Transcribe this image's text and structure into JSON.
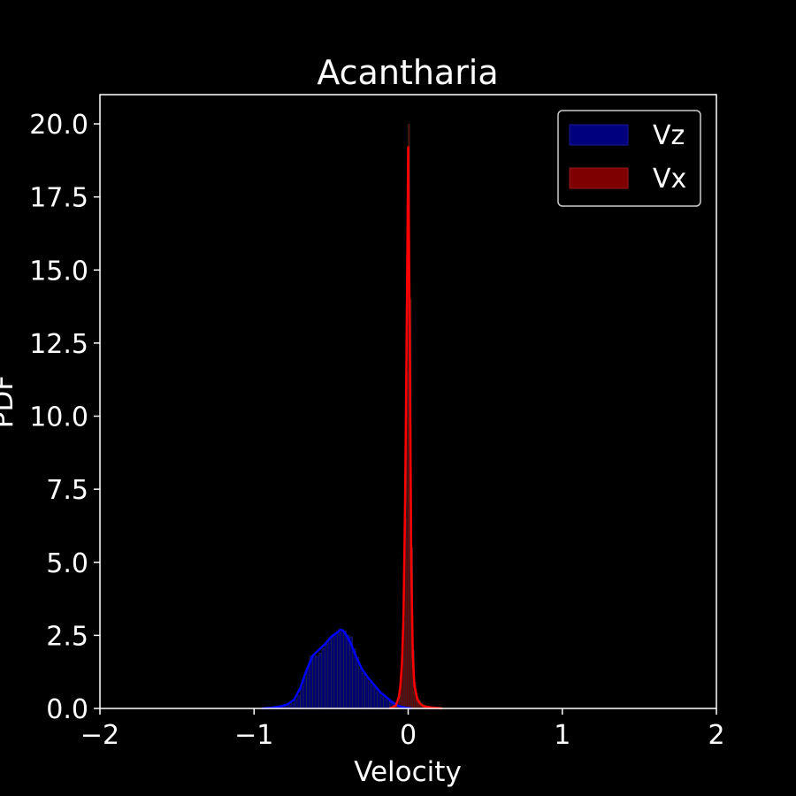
{
  "chart_data": {
    "type": "histogram",
    "title": "Acantharia",
    "xlabel": "Velocity",
    "ylabel": "PDF",
    "xlim": [
      -2,
      2
    ],
    "ylim": [
      0,
      21
    ],
    "x_ticks": [
      -2,
      -1,
      0,
      1,
      2
    ],
    "x_tick_labels": [
      "−2",
      "−1",
      "0",
      "1",
      "2"
    ],
    "y_ticks": [
      0,
      2.5,
      5,
      7.5,
      10,
      12.5,
      15,
      17.5,
      20
    ],
    "y_tick_labels": [
      "0.0",
      "2.5",
      "5.0",
      "7.5",
      "10.0",
      "12.5",
      "15.0",
      "17.5",
      "20.0"
    ],
    "grid": false,
    "legend_position": "top-right",
    "background": "#000000",
    "series": [
      {
        "name": "Vz",
        "bar_color": "#00007f",
        "line_color": "#0000ff",
        "bin_width": 0.02,
        "bins": [
          [
            -0.86,
            0.02
          ],
          [
            -0.84,
            0.04
          ],
          [
            -0.82,
            0.06
          ],
          [
            -0.8,
            0.08
          ],
          [
            -0.78,
            0.13
          ],
          [
            -0.76,
            0.18
          ],
          [
            -0.74,
            0.3
          ],
          [
            -0.72,
            0.45
          ],
          [
            -0.7,
            0.75
          ],
          [
            -0.68,
            1.05
          ],
          [
            -0.66,
            1.4
          ],
          [
            -0.64,
            1.8
          ],
          [
            -0.62,
            1.85
          ],
          [
            -0.6,
            1.8
          ],
          [
            -0.58,
            1.9
          ],
          [
            -0.56,
            2.05
          ],
          [
            -0.54,
            2.2
          ],
          [
            -0.52,
            2.35
          ],
          [
            -0.5,
            2.45
          ],
          [
            -0.48,
            2.55
          ],
          [
            -0.46,
            2.6
          ],
          [
            -0.44,
            2.7
          ],
          [
            -0.42,
            2.65
          ],
          [
            -0.4,
            2.5
          ],
          [
            -0.38,
            2.45
          ],
          [
            -0.36,
            2.05
          ],
          [
            -0.34,
            1.75
          ],
          [
            -0.32,
            1.35
          ],
          [
            -0.3,
            1.2
          ],
          [
            -0.28,
            1.05
          ],
          [
            -0.26,
            0.9
          ],
          [
            -0.24,
            0.8
          ],
          [
            -0.22,
            0.7
          ],
          [
            -0.2,
            0.55
          ],
          [
            -0.18,
            0.45
          ],
          [
            -0.16,
            0.38
          ],
          [
            -0.14,
            0.3
          ],
          [
            -0.12,
            0.22
          ],
          [
            -0.1,
            0.15
          ],
          [
            -0.08,
            0.1
          ],
          [
            -0.06,
            0.05
          ],
          [
            -0.04,
            0.02
          ]
        ],
        "kde": [
          [
            -0.95,
            0.0
          ],
          [
            -0.88,
            0.03
          ],
          [
            -0.82,
            0.08
          ],
          [
            -0.78,
            0.15
          ],
          [
            -0.74,
            0.3
          ],
          [
            -0.7,
            0.7
          ],
          [
            -0.66,
            1.3
          ],
          [
            -0.62,
            1.8
          ],
          [
            -0.58,
            2.0
          ],
          [
            -0.54,
            2.2
          ],
          [
            -0.5,
            2.45
          ],
          [
            -0.46,
            2.6
          ],
          [
            -0.44,
            2.7
          ],
          [
            -0.42,
            2.65
          ],
          [
            -0.4,
            2.5
          ],
          [
            -0.37,
            2.2
          ],
          [
            -0.34,
            1.8
          ],
          [
            -0.3,
            1.35
          ],
          [
            -0.26,
            1.05
          ],
          [
            -0.22,
            0.8
          ],
          [
            -0.18,
            0.55
          ],
          [
            -0.14,
            0.38
          ],
          [
            -0.1,
            0.2
          ],
          [
            -0.06,
            0.08
          ],
          [
            -0.02,
            0.03
          ],
          [
            0.02,
            0.0
          ]
        ]
      },
      {
        "name": "Vx",
        "bar_color": "#7f0000",
        "line_color": "#ff0000",
        "bin_width": 0.01,
        "bins": [
          [
            -0.12,
            0.03
          ],
          [
            -0.11,
            0.04
          ],
          [
            -0.1,
            0.06
          ],
          [
            -0.09,
            0.08
          ],
          [
            -0.08,
            0.12
          ],
          [
            -0.07,
            0.2
          ],
          [
            -0.06,
            0.4
          ],
          [
            -0.05,
            0.8
          ],
          [
            -0.04,
            1.6
          ],
          [
            -0.03,
            3.0
          ],
          [
            -0.02,
            6.5
          ],
          [
            -0.01,
            11.5
          ],
          [
            0.0,
            20.0
          ],
          [
            0.01,
            14.0
          ],
          [
            0.02,
            5.5
          ],
          [
            0.03,
            2.0
          ],
          [
            0.04,
            0.9
          ],
          [
            0.05,
            0.5
          ],
          [
            0.06,
            0.35
          ],
          [
            0.07,
            0.28
          ],
          [
            0.08,
            0.2
          ],
          [
            0.09,
            0.15
          ],
          [
            0.1,
            0.12
          ],
          [
            0.11,
            0.1
          ],
          [
            0.12,
            0.08
          ],
          [
            0.13,
            0.07
          ],
          [
            0.14,
            0.06
          ],
          [
            0.15,
            0.05
          ],
          [
            0.16,
            0.04
          ],
          [
            0.17,
            0.04
          ],
          [
            0.18,
            0.03
          ],
          [
            0.19,
            0.03
          ],
          [
            0.2,
            0.02
          ],
          [
            0.21,
            0.02
          ],
          [
            0.22,
            0.01
          ]
        ],
        "kde": [
          [
            -0.12,
            0.0
          ],
          [
            -0.08,
            0.1
          ],
          [
            -0.06,
            0.4
          ],
          [
            -0.05,
            0.8
          ],
          [
            -0.04,
            1.6
          ],
          [
            -0.03,
            3.2
          ],
          [
            -0.02,
            7.0
          ],
          [
            -0.01,
            12.5
          ],
          [
            0.0,
            19.2
          ],
          [
            0.01,
            13.0
          ],
          [
            0.02,
            5.0
          ],
          [
            0.03,
            1.8
          ],
          [
            0.04,
            0.8
          ],
          [
            0.06,
            0.3
          ],
          [
            0.08,
            0.15
          ],
          [
            0.1,
            0.08
          ],
          [
            0.14,
            0.04
          ],
          [
            0.18,
            0.02
          ],
          [
            0.22,
            0.0
          ]
        ]
      }
    ]
  }
}
